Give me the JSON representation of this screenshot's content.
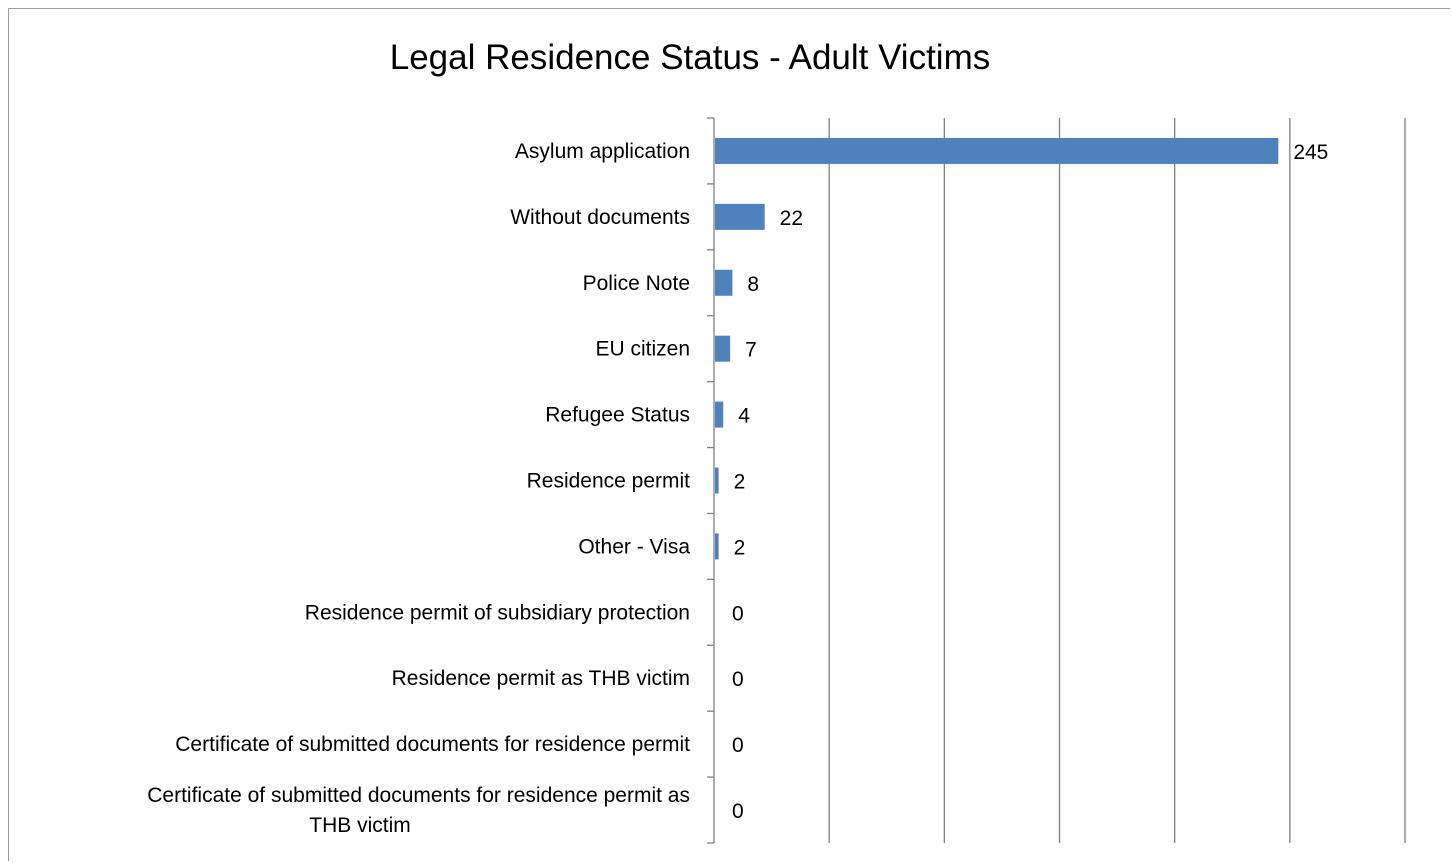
{
  "chart_data": {
    "type": "bar",
    "orientation": "horizontal",
    "title": "Legal Residence Status - Adult Victims",
    "xlabel": "",
    "ylabel": "",
    "categories": [
      [
        "Asylum application"
      ],
      [
        "Without documents"
      ],
      [
        "Police Note"
      ],
      [
        "EU citizen"
      ],
      [
        "Refugee Status"
      ],
      [
        "Residence permit"
      ],
      [
        "Other - Visa"
      ],
      [
        "Residence permit of subsidiary protection"
      ],
      [
        "Residence permit as THB victim"
      ],
      [
        "Certificate of submitted documents for residence permit"
      ],
      [
        "Certificate of submitted documents for residence permit as",
        "THB victim"
      ]
    ],
    "values": [
      245,
      22,
      8,
      7,
      4,
      2,
      2,
      0,
      0,
      0,
      0
    ],
    "xlim": [
      0,
      300
    ],
    "x_gridlines": [
      50,
      100,
      150,
      200,
      250,
      300
    ],
    "grid": true,
    "legend": "none",
    "bar_color": "#4f81bd",
    "grid_color": "#7f7f7f"
  }
}
